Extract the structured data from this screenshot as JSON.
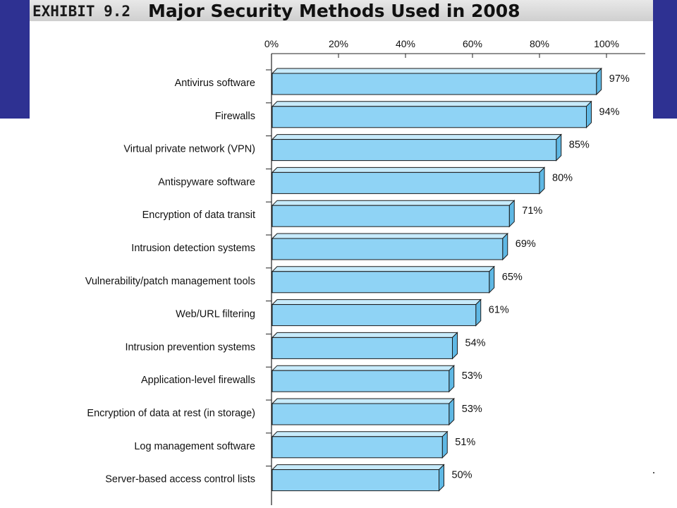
{
  "header": {
    "exhibit_label": "EXHIBIT 9.2",
    "title": "Major Security Methods Used in 2008"
  },
  "colors": {
    "frame": "#2e3192",
    "bar_front": "#8fd3f5",
    "bar_top": "#c7ebfb",
    "bar_side": "#5fb8e4",
    "bar_outline": "#1a1a1a"
  },
  "chart_data": {
    "type": "bar",
    "orientation": "horizontal",
    "categories": [
      "Antivirus software",
      "Firewalls",
      "Virtual private network (VPN)",
      "Antispyware software",
      "Encryption of data transit",
      "Intrusion detection systems",
      "Vulnerability/patch management tools",
      "Web/URL filtering",
      "Intrusion prevention systems",
      "Application-level firewalls",
      "Encryption of data at rest (in storage)",
      "Log management software",
      "Server-based access control lists"
    ],
    "values": [
      97,
      94,
      85,
      80,
      71,
      69,
      65,
      61,
      54,
      53,
      53,
      51,
      50
    ],
    "value_labels": [
      "97%",
      "94%",
      "85%",
      "80%",
      "71%",
      "69%",
      "65%",
      "61%",
      "54%",
      "53%",
      "53%",
      "51%",
      "50%"
    ],
    "x_ticks": [
      0,
      20,
      40,
      60,
      80,
      100
    ],
    "x_tick_labels": [
      "0%",
      "20%",
      "40%",
      "60%",
      "80%",
      "100%"
    ],
    "xlim": [
      0,
      100
    ],
    "title": "Major Security Methods Used in 2008",
    "xlabel": "",
    "ylabel": "",
    "grid": false,
    "legend": "none"
  }
}
